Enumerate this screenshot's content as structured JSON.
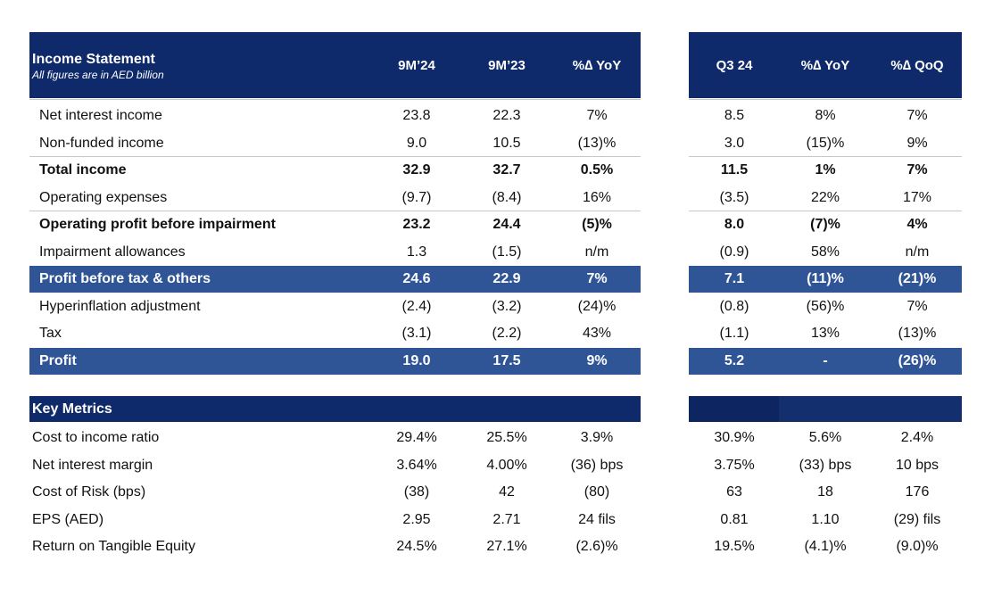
{
  "income_statement": {
    "title": "Income Statement",
    "subtitle": "All figures are in AED billion",
    "columns": [
      "9M’24",
      "9M’23",
      "%∆ YoY",
      "Q3 24",
      "%∆ YoY",
      "%∆ QoQ"
    ],
    "rows": [
      {
        "label": "Net interest income",
        "values": [
          "23.8",
          "22.3",
          "7%",
          "8.5",
          "8%",
          "7%"
        ]
      },
      {
        "label": "Non-funded income",
        "values": [
          "9.0",
          "10.5",
          "(13)%",
          "3.0",
          "(15)%",
          "9%"
        ]
      },
      {
        "label": "Total income",
        "values": [
          "32.9",
          "32.7",
          "0.5%",
          "11.5",
          "1%",
          "7%"
        ],
        "style": "bold"
      },
      {
        "label": "Operating expenses",
        "values": [
          "(9.7)",
          "(8.4)",
          "16%",
          "(3.5)",
          "22%",
          "17%"
        ]
      },
      {
        "label": "Operating profit before impairment",
        "values": [
          "23.2",
          "24.4",
          "(5)%",
          "8.0",
          "(7)%",
          "4%"
        ],
        "style": "bold"
      },
      {
        "label": "Impairment allowances",
        "values": [
          "1.3",
          "(1.5)",
          "n/m",
          "(0.9)",
          "58%",
          "n/m"
        ]
      },
      {
        "label": "Profit before tax & others",
        "values": [
          "24.6",
          "22.9",
          "7%",
          "7.1",
          "(11)%",
          "(21)%"
        ],
        "style": "highlight"
      },
      {
        "label": "Hyperinflation adjustment",
        "values": [
          "(2.4)",
          "(3.2)",
          "(24)%",
          "(0.8)",
          "(56)%",
          "7%"
        ]
      },
      {
        "label": "Tax",
        "values": [
          "(3.1)",
          "(2.2)",
          "43%",
          "(1.1)",
          "13%",
          "(13)%"
        ]
      },
      {
        "label": "Profit",
        "values": [
          "19.0",
          "17.5",
          "9%",
          "5.2",
          "-",
          "(26)%"
        ],
        "style": "highlight"
      }
    ]
  },
  "key_metrics": {
    "title": "Key Metrics",
    "rows": [
      {
        "label": "Cost to income ratio",
        "values": [
          "29.4%",
          "25.5%",
          "3.9%",
          "30.9%",
          "5.6%",
          "2.4%"
        ]
      },
      {
        "label": "Net interest margin",
        "values": [
          "3.64%",
          "4.00%",
          "(36) bps",
          "3.75%",
          "(33) bps",
          "10 bps"
        ]
      },
      {
        "label": "Cost of Risk (bps)",
        "values": [
          "(38)",
          "42",
          "(80)",
          "63",
          "18",
          "176"
        ]
      },
      {
        "label": "EPS (AED)",
        "values": [
          "2.95",
          "2.71",
          "24 fils",
          "0.81",
          "1.10",
          "(29) fils"
        ]
      },
      {
        "label": "Return on Tangible Equity",
        "values": [
          "24.5%",
          "27.1%",
          "(2.6)%",
          "19.5%",
          "(4.1)%",
          "(9.0)%"
        ]
      }
    ]
  }
}
